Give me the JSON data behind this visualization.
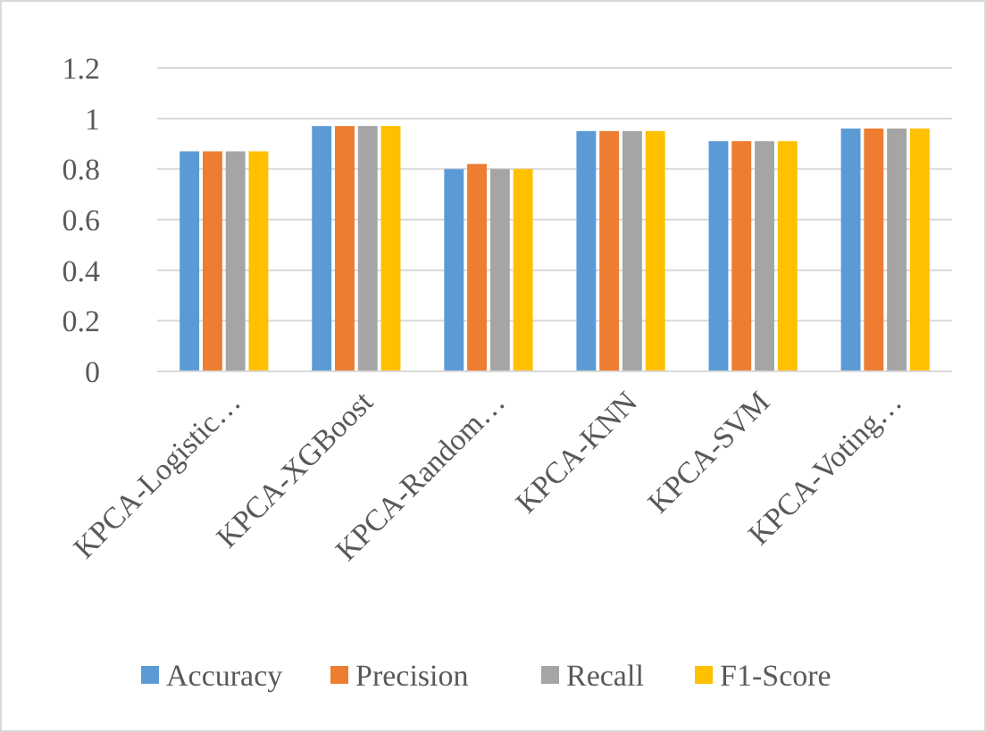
{
  "chart_data": {
    "type": "bar",
    "categories": [
      "KPCA-Logistic…",
      "KPCA-XGBoost",
      "KPCA-Random…",
      "KPCA-KNN",
      "KPCA-SVM",
      "KPCA-Voting…"
    ],
    "series": [
      {
        "name": "Accuracy",
        "color": "#5b9bd5",
        "values": [
          0.87,
          0.97,
          0.8,
          0.95,
          0.91,
          0.96
        ]
      },
      {
        "name": "Precision",
        "color": "#ed7d31",
        "values": [
          0.87,
          0.97,
          0.82,
          0.95,
          0.91,
          0.96
        ]
      },
      {
        "name": "Recall",
        "color": "#a5a5a5",
        "values": [
          0.87,
          0.97,
          0.8,
          0.95,
          0.91,
          0.96
        ]
      },
      {
        "name": "F1-Score",
        "color": "#ffc000",
        "values": [
          0.87,
          0.97,
          0.8,
          0.95,
          0.91,
          0.96
        ]
      }
    ],
    "ylim": [
      0,
      1.2
    ],
    "yticks": [
      0,
      0.2,
      0.4,
      0.6,
      0.8,
      1,
      1.2
    ],
    "grid": "y",
    "legend": "bottom"
  }
}
